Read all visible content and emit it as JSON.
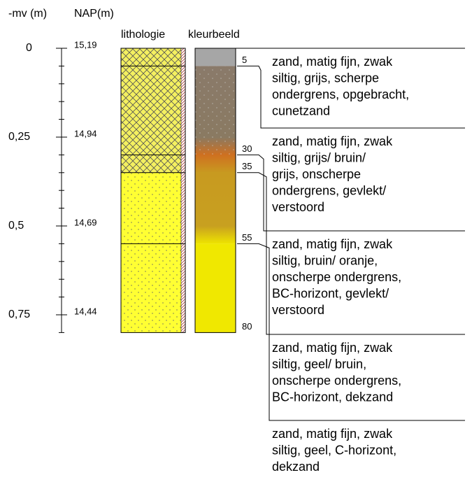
{
  "headers": {
    "depth": "-mv (m)",
    "nap": "NAP(m)",
    "lithology": "lithologie",
    "color": "kleurbeeld"
  },
  "depth_ticks": [
    {
      "value": 0,
      "label": "0"
    },
    {
      "value": 0.25,
      "label": "0,25"
    },
    {
      "value": 0.5,
      "label": "0,5"
    },
    {
      "value": 0.75,
      "label": "0,75"
    }
  ],
  "nap_labels": [
    "15,19",
    "14,94",
    "14,69",
    "14,44"
  ],
  "boundaries": [
    5,
    30,
    35,
    55,
    80
  ],
  "layers": [
    {
      "lines": [
        "zand, matig fijn, zwak",
        "siltig, grijs, scherpe",
        "ondergrens, opgebracht,",
        "cunetzand"
      ]
    },
    {
      "lines": [
        "zand, matig fijn, zwak",
        "siltig, grijs/ bruin/",
        "grijs, onscherpe",
        "ondergrens, gevlekt/",
        "verstoord"
      ]
    },
    {
      "lines": [
        "zand, matig fijn, zwak",
        "siltig, bruin/ oranje,",
        "onscherpe ondergrens,",
        "BC-horizont, gevlekt/",
        "verstoord"
      ]
    },
    {
      "lines": [
        "zand, matig fijn, zwak",
        "siltig, geel/ bruin,",
        "onscherpe ondergrens,",
        "BC-horizont, dekzand"
      ]
    },
    {
      "lines": [
        "zand, matig fijn, zwak",
        "siltig, geel, C-horizont,",
        "dekzand"
      ]
    }
  ]
}
